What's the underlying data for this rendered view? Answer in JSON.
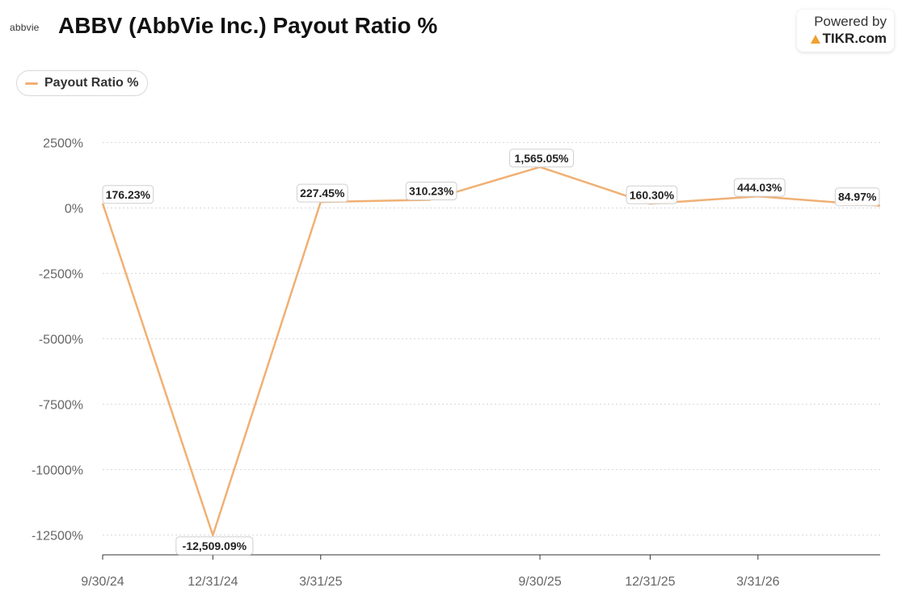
{
  "header": {
    "logo_text": "abbvie",
    "title": "ABBV (AbbVie Inc.) Payout Ratio %",
    "powered_by": "Powered by",
    "brand": "TIKR.com"
  },
  "colors": {
    "series": "#f0b074",
    "grid": "#d9d9d9",
    "axis": "#333333"
  },
  "chart_data": {
    "type": "line",
    "title": "ABBV (AbbVie Inc.) Payout Ratio %",
    "legend_position": "top-left",
    "grid": true,
    "y_ticks": [
      2500,
      0,
      -2500,
      -5000,
      -7500,
      -10000,
      -12500
    ],
    "y_tick_labels": [
      "2500%",
      "0%",
      "-2500%",
      "-5000%",
      "-7500%",
      "-10000%",
      "-12500%"
    ],
    "ylim": [
      -13300,
      3000
    ],
    "x_ticks": [
      "2024-09-30",
      "2024-12-31",
      "2025-03-31",
      "2025-09-30",
      "2025-12-31",
      "2026-03-31"
    ],
    "x_tick_labels": [
      "9/30/24",
      "12/31/24",
      "3/31/25",
      "9/30/25",
      "12/31/25",
      "3/31/26"
    ],
    "xlim": [
      "2024-09-30",
      "2026-07-11"
    ],
    "series": [
      {
        "name": "Payout Ratio %",
        "x": [
          "2024-09-30",
          "2024-12-31",
          "2025-03-31",
          "2025-06-30",
          "2025-09-30",
          "2025-12-31",
          "2026-03-31",
          "2026-07-11"
        ],
        "values": [
          176.23,
          -12509.09,
          227.45,
          310.23,
          1565.05,
          160.3,
          444.03,
          84.97
        ],
        "labels": [
          "176.23%",
          "-12,509.09%",
          "227.45%",
          "310.23%",
          "1,565.05%",
          "160.30%",
          "444.03%",
          "84.97%"
        ]
      }
    ]
  }
}
